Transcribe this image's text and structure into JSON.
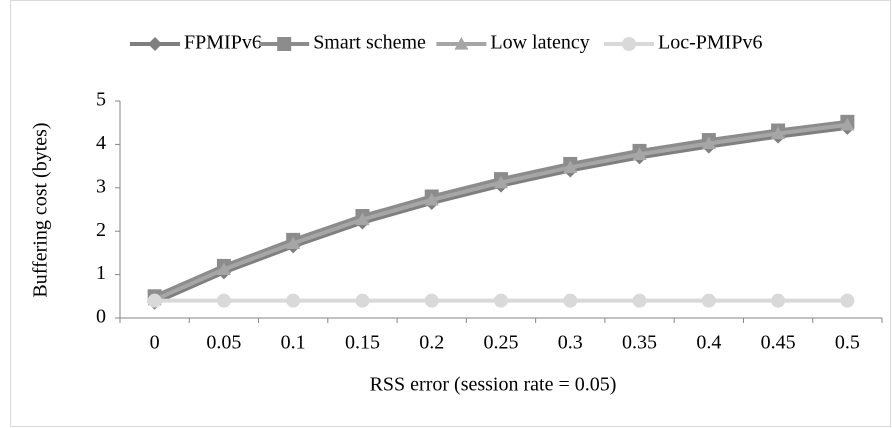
{
  "chart_data": {
    "type": "line",
    "xlabel": "RSS error (session rate = 0.05)",
    "ylabel": "Buffering cost (bytes)",
    "categories": [
      "0",
      "0.05",
      "0.1",
      "0.15",
      "0.2",
      "0.25",
      "0.3",
      "0.35",
      "0.4",
      "0.45",
      "0.5"
    ],
    "series": [
      {
        "name": "FPMIPv6",
        "color": "#7f7f7f",
        "marker": "diamond",
        "values": [
          0.35,
          1.05,
          1.65,
          2.2,
          2.65,
          3.05,
          3.4,
          3.7,
          3.95,
          4.18,
          4.38
        ]
      },
      {
        "name": "Smart scheme",
        "color": "#8c8c8c",
        "marker": "square",
        "values": [
          0.5,
          1.2,
          1.8,
          2.35,
          2.8,
          3.2,
          3.55,
          3.85,
          4.1,
          4.32,
          4.52
        ]
      },
      {
        "name": "Low latency",
        "color": "#a6a6a6",
        "marker": "triangle",
        "values": [
          0.42,
          1.12,
          1.72,
          2.27,
          2.72,
          3.12,
          3.47,
          3.77,
          4.02,
          4.25,
          4.45
        ]
      },
      {
        "name": "Loc-PMIPv6",
        "color": "#d9d9d9",
        "marker": "circle",
        "values": [
          0.4,
          0.4,
          0.4,
          0.4,
          0.4,
          0.4,
          0.4,
          0.4,
          0.4,
          0.4,
          0.4
        ]
      }
    ],
    "ylim": [
      0,
      5
    ],
    "yticks": [
      0,
      1,
      2,
      3,
      4,
      5
    ],
    "grid": false,
    "legend": "top"
  }
}
